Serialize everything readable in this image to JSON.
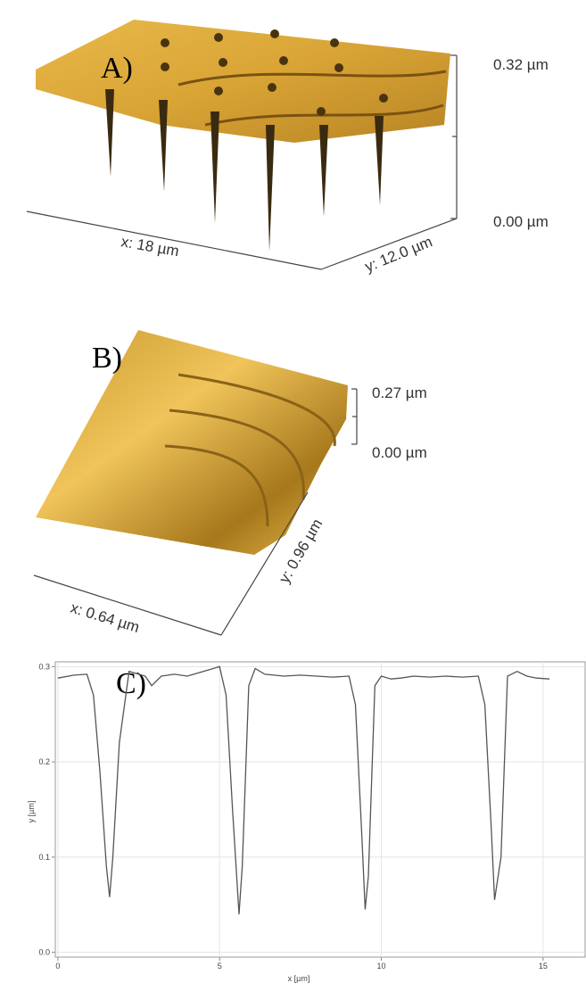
{
  "panels": [
    {
      "label": "A)",
      "z_labels": [
        "0.32 µm",
        "0.00 µm"
      ],
      "x_label": "x: 18 µm",
      "y_label": "y: 12.0 µm"
    },
    {
      "label": "B)",
      "z_labels": [
        "0.27 µm",
        "0.00 µm"
      ],
      "x_label": "x: 0.64 µm",
      "y_label": "y: 0.96 µm"
    }
  ],
  "chart_data": {
    "type": "line",
    "label": "C)",
    "x_label": "x [µm]",
    "y_label": "y [µm]",
    "x": [
      0,
      0.5,
      0.9,
      1.1,
      1.3,
      1.5,
      1.6,
      1.7,
      1.9,
      2.2,
      2.5,
      2.7,
      2.9,
      3.2,
      3.6,
      4.0,
      4.4,
      4.8,
      5.0,
      5.2,
      5.4,
      5.6,
      5.7,
      5.9,
      6.1,
      6.4,
      7.0,
      7.5,
      8.0,
      8.5,
      9.0,
      9.2,
      9.4,
      9.5,
      9.6,
      9.8,
      10.0,
      10.3,
      10.6,
      11.0,
      11.5,
      12.0,
      12.5,
      13.0,
      13.2,
      13.4,
      13.5,
      13.7,
      13.9,
      14.2,
      14.5,
      14.8,
      15.2
    ],
    "values": [
      0.288,
      0.291,
      0.292,
      0.27,
      0.19,
      0.09,
      0.058,
      0.1,
      0.22,
      0.295,
      0.292,
      0.29,
      0.28,
      0.29,
      0.292,
      0.29,
      0.294,
      0.298,
      0.3,
      0.27,
      0.15,
      0.04,
      0.09,
      0.28,
      0.298,
      0.292,
      0.29,
      0.291,
      0.29,
      0.289,
      0.29,
      0.26,
      0.12,
      0.045,
      0.08,
      0.28,
      0.29,
      0.287,
      0.288,
      0.29,
      0.289,
      0.29,
      0.289,
      0.29,
      0.26,
      0.13,
      0.055,
      0.1,
      0.29,
      0.295,
      0.29,
      0.288,
      0.287
    ],
    "color": "#555555",
    "xlim": [
      -0.08,
      16.3
    ],
    "ylim": [
      -0.005,
      0.305
    ],
    "xticks": [
      0,
      5,
      10,
      15
    ],
    "yticks": [
      {
        "value": 0,
        "label": "0.0"
      },
      0.1,
      0.2,
      0.3
    ],
    "grid": true
  }
}
